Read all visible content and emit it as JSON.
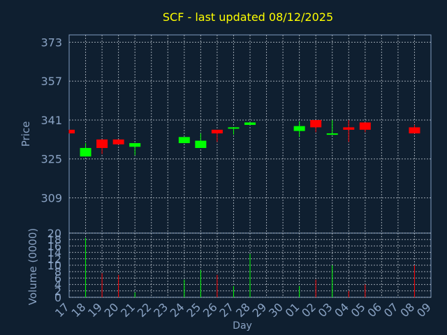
{
  "chart_data": {
    "type": "candlestick",
    "title": "SCF - last updated 08/12/2025",
    "xlabel": "Day",
    "price_panel": {
      "ylabel": "Price",
      "yticks": [
        309,
        325,
        341,
        357,
        373
      ],
      "ylim": [
        294.5,
        376
      ]
    },
    "volume_panel": {
      "ylabel": "Volume (0000)",
      "yticks": [
        0,
        2,
        4,
        6,
        8,
        10,
        12,
        14,
        16,
        18,
        20
      ],
      "ylim": [
        0,
        20
      ]
    },
    "x_tick_labels": [
      "17",
      "18",
      "19",
      "20",
      "21",
      "22",
      "23",
      "24",
      "25",
      "26",
      "27",
      "28",
      "29",
      "30",
      "01",
      "02",
      "03",
      "04",
      "05",
      "06",
      "07",
      "08",
      "09"
    ],
    "candles": [
      {
        "day": "17",
        "open": 337.0,
        "close": 335.5,
        "high": 337.0,
        "low": 335.5,
        "volume": 0.0
      },
      {
        "day": "18",
        "open": 326.0,
        "close": 329.5,
        "high": 331.5,
        "low": 326.0,
        "volume": 18.5
      },
      {
        "day": "19",
        "open": 333.0,
        "close": 329.5,
        "high": 333.0,
        "low": 327.0,
        "volume": 7.5
      },
      {
        "day": "20",
        "open": 333.0,
        "close": 331.0,
        "high": 333.0,
        "low": 331.0,
        "volume": 7.0
      },
      {
        "day": "21",
        "open": 330.0,
        "close": 331.5,
        "high": 331.5,
        "low": 326.5,
        "volume": 1.5
      },
      {
        "day": "24",
        "open": 331.5,
        "close": 334.0,
        "high": 334.0,
        "low": 331.5,
        "volume": 5.5
      },
      {
        "day": "25",
        "open": 329.5,
        "close": 332.5,
        "high": 335.5,
        "low": 329.5,
        "volume": 8.5
      },
      {
        "day": "26",
        "open": 337.0,
        "close": 335.5,
        "high": 337.0,
        "low": 332.0,
        "volume": 7.0
      },
      {
        "day": "27",
        "open": 337.5,
        "close": 338.0,
        "high": 338.0,
        "low": 335.0,
        "volume": 3.5
      },
      {
        "day": "28",
        "open": 339.0,
        "close": 340.0,
        "high": 340.0,
        "low": 339.0,
        "volume": 13.5
      },
      {
        "day": "01",
        "open": 336.5,
        "close": 338.5,
        "high": 340.5,
        "low": 334.0,
        "volume": 3.5
      },
      {
        "day": "02",
        "open": 341.0,
        "close": 338.0,
        "high": 341.0,
        "low": 336.0,
        "volume": 5.5
      },
      {
        "day": "03",
        "open": 335.5,
        "close": 335.5,
        "high": 341.0,
        "low": 335.0,
        "volume": 10.0
      },
      {
        "day": "04",
        "open": 338.0,
        "close": 337.0,
        "high": 341.0,
        "low": 332.0,
        "volume": 2.0
      },
      {
        "day": "05",
        "open": 340.0,
        "close": 337.0,
        "high": 340.0,
        "low": 336.0,
        "volume": 4.0
      },
      {
        "day": "08",
        "open": 338.0,
        "close": 335.5,
        "high": 339.0,
        "low": 335.5,
        "volume": 10.0
      }
    ],
    "grid": true,
    "colors": {
      "background": "#0f1f30",
      "panel_border": "#7f9bbf",
      "grid": "#c8d0d8",
      "title": "#ffff00",
      "axis_text": "#8aa3c4",
      "up": "#00ff00",
      "down": "#ff0000"
    }
  }
}
